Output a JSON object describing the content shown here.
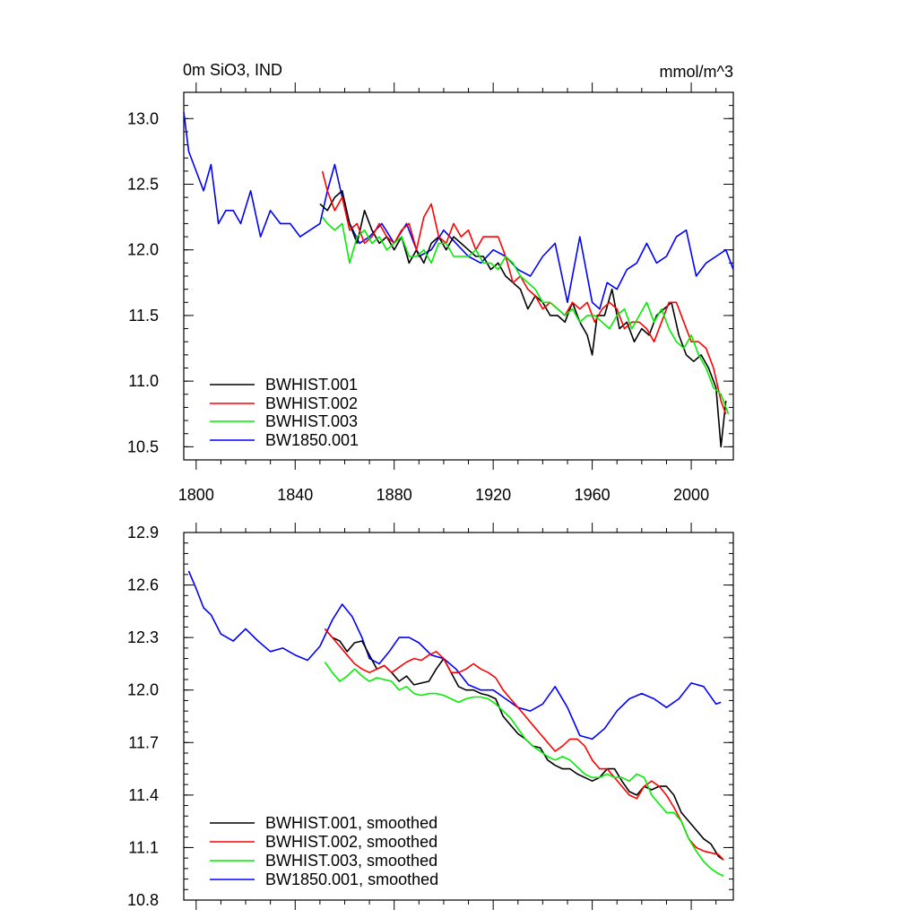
{
  "colors": {
    "BWHIST.001": "#000000",
    "BWHIST.002": "#ff0000",
    "BWHIST.003": "#00ee00",
    "BW1850.001": "#0000ff"
  },
  "chart_data": [
    {
      "type": "line",
      "title": "0m SiO3, IND",
      "units": "mmol/m^3",
      "xlim": [
        1795,
        2017
      ],
      "ylim": [
        10.4,
        13.2
      ],
      "xticks": [
        1800,
        1840,
        1880,
        1920,
        1960,
        2000
      ],
      "xtick_labels": [
        "1800",
        "1840",
        "1880",
        "1920",
        "1960",
        "2000"
      ],
      "yticks": [
        10.5,
        11.0,
        11.5,
        12.0,
        12.5,
        13.0
      ],
      "ytick_labels": [
        "10.5",
        "11.0",
        "11.5",
        "12.0",
        "12.5",
        "13.0"
      ],
      "legend": [
        "BWHIST.001",
        "BWHIST.002",
        "BWHIST.003",
        "BW1850.001"
      ],
      "series": [
        {
          "name": "BW1850.001",
          "x": [
            1795,
            1797,
            1800,
            1803,
            1806,
            1809,
            1812,
            1815,
            1818,
            1822,
            1826,
            1830,
            1834,
            1838,
            1842,
            1846,
            1850,
            1853,
            1856,
            1859,
            1862,
            1866,
            1870,
            1875,
            1880,
            1885,
            1890,
            1895,
            1900,
            1905,
            1910,
            1915,
            1920,
            1925,
            1930,
            1935,
            1940,
            1945,
            1950,
            1955,
            1960,
            1963,
            1966,
            1970,
            1974,
            1978,
            1982,
            1986,
            1990,
            1994,
            1998,
            2002,
            2006,
            2010,
            2014,
            2017
          ],
          "values": [
            13.05,
            12.75,
            12.6,
            12.45,
            12.65,
            12.2,
            12.3,
            12.3,
            12.2,
            12.45,
            12.1,
            12.3,
            12.2,
            12.2,
            12.1,
            12.15,
            12.2,
            12.45,
            12.65,
            12.4,
            12.2,
            12.05,
            12.1,
            12.2,
            12.05,
            12.2,
            11.95,
            12.0,
            12.15,
            12.05,
            11.95,
            11.9,
            12.0,
            11.95,
            11.85,
            11.8,
            11.95,
            12.05,
            11.6,
            12.1,
            11.6,
            11.55,
            11.75,
            11.7,
            11.85,
            11.9,
            12.05,
            11.9,
            11.95,
            12.1,
            12.15,
            11.8,
            11.9,
            11.95,
            12.0,
            11.85
          ]
        },
        {
          "name": "BWHIST.001",
          "x": [
            1850,
            1853,
            1856,
            1859,
            1862,
            1865,
            1868,
            1871,
            1874,
            1877,
            1880,
            1883,
            1886,
            1889,
            1892,
            1895,
            1898,
            1901,
            1904,
            1907,
            1910,
            1913,
            1916,
            1919,
            1922,
            1925,
            1928,
            1931,
            1934,
            1937,
            1940,
            1943,
            1946,
            1949,
            1952,
            1955,
            1958,
            1960,
            1962,
            1965,
            1968,
            1971,
            1974,
            1977,
            1980,
            1983,
            1986,
            1989,
            1992,
            1995,
            1998,
            2001,
            2004,
            2007,
            2010,
            2012,
            2014
          ],
          "values": [
            12.35,
            12.3,
            12.4,
            12.45,
            12.2,
            12.05,
            12.3,
            12.15,
            12.05,
            12.1,
            12.0,
            12.1,
            11.9,
            12.0,
            11.9,
            12.05,
            12.1,
            12.0,
            12.1,
            12.05,
            12.0,
            11.95,
            11.95,
            11.85,
            11.9,
            11.8,
            11.75,
            11.7,
            11.55,
            11.65,
            11.6,
            11.5,
            11.5,
            11.45,
            11.6,
            11.45,
            11.35,
            11.2,
            11.5,
            11.5,
            11.7,
            11.4,
            11.45,
            11.3,
            11.4,
            11.35,
            11.5,
            11.55,
            11.6,
            11.35,
            11.2,
            11.15,
            11.2,
            11.1,
            10.95,
            10.5,
            10.85
          ]
        },
        {
          "name": "BWHIST.002",
          "x": [
            1851,
            1853,
            1856,
            1859,
            1862,
            1865,
            1868,
            1871,
            1874,
            1877,
            1880,
            1883,
            1886,
            1889,
            1892,
            1895,
            1898,
            1901,
            1904,
            1907,
            1910,
            1913,
            1916,
            1919,
            1922,
            1925,
            1928,
            1931,
            1934,
            1937,
            1940,
            1943,
            1946,
            1949,
            1952,
            1955,
            1958,
            1961,
            1964,
            1967,
            1970,
            1973,
            1976,
            1979,
            1982,
            1985,
            1988,
            1991,
            1994,
            1997,
            2000,
            2003,
            2006,
            2009,
            2012,
            2014
          ],
          "values": [
            12.6,
            12.45,
            12.3,
            12.4,
            12.15,
            12.2,
            12.05,
            12.1,
            12.2,
            12.1,
            12.05,
            12.15,
            12.2,
            12.0,
            12.25,
            12.35,
            12.1,
            12.05,
            12.2,
            12.1,
            12.15,
            12.0,
            12.1,
            12.1,
            12.1,
            11.95,
            11.75,
            11.8,
            11.7,
            11.65,
            11.55,
            11.6,
            11.55,
            11.5,
            11.6,
            11.55,
            11.6,
            11.45,
            11.55,
            11.6,
            11.55,
            11.4,
            11.45,
            11.45,
            11.4,
            11.3,
            11.45,
            11.6,
            11.6,
            11.45,
            11.3,
            11.3,
            11.25,
            11.1,
            10.85,
            10.75
          ]
        },
        {
          "name": "BWHIST.003",
          "x": [
            1851,
            1853,
            1856,
            1859,
            1862,
            1865,
            1868,
            1871,
            1874,
            1877,
            1880,
            1883,
            1886,
            1889,
            1892,
            1895,
            1898,
            1901,
            1904,
            1907,
            1910,
            1913,
            1916,
            1919,
            1922,
            1925,
            1928,
            1931,
            1934,
            1937,
            1940,
            1943,
            1946,
            1949,
            1952,
            1955,
            1958,
            1961,
            1964,
            1967,
            1970,
            1973,
            1976,
            1979,
            1982,
            1985,
            1988,
            1991,
            1994,
            1997,
            2000,
            2003,
            2006,
            2009,
            2012,
            2015
          ],
          "values": [
            12.25,
            12.2,
            12.15,
            12.2,
            11.9,
            12.1,
            12.15,
            12.05,
            12.1,
            12.0,
            12.05,
            12.1,
            11.95,
            11.95,
            12.0,
            11.9,
            12.05,
            12.05,
            11.95,
            11.95,
            11.95,
            12.0,
            11.9,
            11.9,
            11.85,
            11.95,
            11.9,
            11.8,
            11.75,
            11.7,
            11.6,
            11.6,
            11.55,
            11.5,
            11.55,
            11.45,
            11.5,
            11.5,
            11.45,
            11.4,
            11.5,
            11.55,
            11.4,
            11.5,
            11.6,
            11.45,
            11.55,
            11.4,
            11.3,
            11.25,
            11.35,
            11.2,
            11.1,
            10.95,
            10.9,
            10.75
          ]
        }
      ]
    },
    {
      "type": "line",
      "xlim": [
        1795,
        2017
      ],
      "ylim": [
        10.8,
        12.9
      ],
      "xticks": [
        1800,
        1840,
        1880,
        1920,
        1960,
        2000
      ],
      "yticks": [
        10.8,
        11.1,
        11.4,
        11.7,
        12.0,
        12.3,
        12.6,
        12.9
      ],
      "ytick_labels": [
        "10.8",
        "11.1",
        "11.4",
        "11.7",
        "12.0",
        "12.3",
        "12.6",
        "12.9"
      ],
      "legend": [
        "BWHIST.001, smoothed",
        "BWHIST.002, smoothed",
        "BWHIST.003, smoothed",
        "BW1850.001, smoothed"
      ],
      "series": [
        {
          "name": "BW1850.001",
          "x": [
            1797,
            1800,
            1803,
            1806,
            1810,
            1815,
            1820,
            1825,
            1830,
            1835,
            1840,
            1845,
            1850,
            1855,
            1859,
            1863,
            1867,
            1870,
            1874,
            1878,
            1882,
            1886,
            1890,
            1895,
            1900,
            1905,
            1910,
            1915,
            1920,
            1925,
            1930,
            1935,
            1940,
            1945,
            1950,
            1955,
            1960,
            1965,
            1970,
            1975,
            1980,
            1985,
            1990,
            1995,
            2000,
            2005,
            2010,
            2012
          ],
          "values": [
            12.68,
            12.58,
            12.47,
            12.43,
            12.32,
            12.28,
            12.35,
            12.28,
            12.22,
            12.24,
            12.2,
            12.17,
            12.25,
            12.4,
            12.49,
            12.42,
            12.3,
            12.18,
            12.15,
            12.22,
            12.3,
            12.3,
            12.27,
            12.2,
            12.18,
            12.12,
            12.03,
            12.0,
            12.0,
            11.95,
            11.9,
            11.88,
            11.92,
            12.02,
            11.9,
            11.74,
            11.72,
            11.78,
            11.88,
            11.95,
            11.98,
            11.95,
            11.9,
            11.95,
            12.04,
            12.02,
            11.92,
            11.93
          ]
        },
        {
          "name": "BWHIST.001",
          "x": [
            1852,
            1855,
            1858,
            1861,
            1864,
            1867,
            1870,
            1873,
            1876,
            1879,
            1882,
            1885,
            1888,
            1891,
            1894,
            1897,
            1900,
            1903,
            1906,
            1909,
            1912,
            1915,
            1918,
            1921,
            1924,
            1927,
            1930,
            1933,
            1936,
            1939,
            1942,
            1945,
            1948,
            1951,
            1954,
            1957,
            1960,
            1963,
            1966,
            1969,
            1972,
            1975,
            1978,
            1981,
            1984,
            1987,
            1990,
            1993,
            1996,
            1999,
            2002,
            2005,
            2008,
            2011,
            2013
          ],
          "values": [
            12.35,
            12.3,
            12.28,
            12.22,
            12.27,
            12.28,
            12.2,
            12.12,
            12.14,
            12.1,
            12.05,
            12.08,
            12.03,
            12.04,
            12.05,
            12.12,
            12.18,
            12.1,
            12.02,
            12.0,
            12.0,
            11.98,
            11.97,
            11.95,
            11.85,
            11.8,
            11.75,
            11.72,
            11.68,
            11.67,
            11.6,
            11.57,
            11.55,
            11.55,
            11.52,
            11.5,
            11.48,
            11.5,
            11.55,
            11.55,
            11.48,
            11.42,
            11.4,
            11.45,
            11.43,
            11.45,
            11.45,
            11.4,
            11.3,
            11.25,
            11.2,
            11.15,
            11.12,
            11.05,
            11.03
          ]
        },
        {
          "name": "BWHIST.002",
          "x": [
            1852,
            1855,
            1858,
            1861,
            1864,
            1867,
            1870,
            1873,
            1876,
            1879,
            1882,
            1885,
            1888,
            1891,
            1894,
            1897,
            1900,
            1903,
            1906,
            1909,
            1912,
            1915,
            1918,
            1921,
            1924,
            1927,
            1930,
            1933,
            1936,
            1939,
            1942,
            1945,
            1948,
            1951,
            1954,
            1957,
            1960,
            1963,
            1966,
            1969,
            1972,
            1975,
            1978,
            1981,
            1984,
            1987,
            1990,
            1993,
            1996,
            1999,
            2002,
            2005,
            2008,
            2011,
            2013
          ],
          "values": [
            12.35,
            12.3,
            12.25,
            12.2,
            12.15,
            12.12,
            12.1,
            12.12,
            12.14,
            12.1,
            12.13,
            12.16,
            12.18,
            12.17,
            12.2,
            12.22,
            12.18,
            12.1,
            12.1,
            12.12,
            12.15,
            12.12,
            12.1,
            12.07,
            12.0,
            11.95,
            11.9,
            11.85,
            11.8,
            11.75,
            11.7,
            11.65,
            11.68,
            11.72,
            11.72,
            11.68,
            11.6,
            11.55,
            11.55,
            11.5,
            11.45,
            11.4,
            11.38,
            11.45,
            11.48,
            11.45,
            11.4,
            11.33,
            11.25,
            11.15,
            11.1,
            11.08,
            11.07,
            11.06,
            11.03
          ]
        },
        {
          "name": "BWHIST.003",
          "x": [
            1852,
            1855,
            1858,
            1861,
            1864,
            1867,
            1870,
            1873,
            1876,
            1879,
            1882,
            1885,
            1888,
            1891,
            1894,
            1897,
            1900,
            1903,
            1906,
            1909,
            1912,
            1915,
            1918,
            1921,
            1924,
            1927,
            1930,
            1933,
            1936,
            1939,
            1942,
            1945,
            1948,
            1951,
            1954,
            1957,
            1960,
            1963,
            1966,
            1969,
            1972,
            1975,
            1978,
            1981,
            1984,
            1987,
            1990,
            1993,
            1996,
            1999,
            2002,
            2005,
            2008,
            2011,
            2013
          ],
          "values": [
            12.16,
            12.1,
            12.05,
            12.08,
            12.12,
            12.08,
            12.05,
            12.07,
            12.06,
            12.05,
            12.0,
            12.02,
            11.98,
            11.97,
            11.98,
            11.98,
            11.97,
            11.95,
            11.93,
            11.95,
            11.96,
            11.96,
            11.95,
            11.92,
            11.88,
            11.84,
            11.78,
            11.72,
            11.68,
            11.65,
            11.62,
            11.6,
            11.62,
            11.6,
            11.56,
            11.52,
            11.5,
            11.5,
            11.52,
            11.5,
            11.5,
            11.48,
            11.52,
            11.5,
            11.4,
            11.35,
            11.3,
            11.3,
            11.25,
            11.15,
            11.08,
            11.02,
            10.98,
            10.95,
            10.94
          ]
        }
      ]
    }
  ]
}
